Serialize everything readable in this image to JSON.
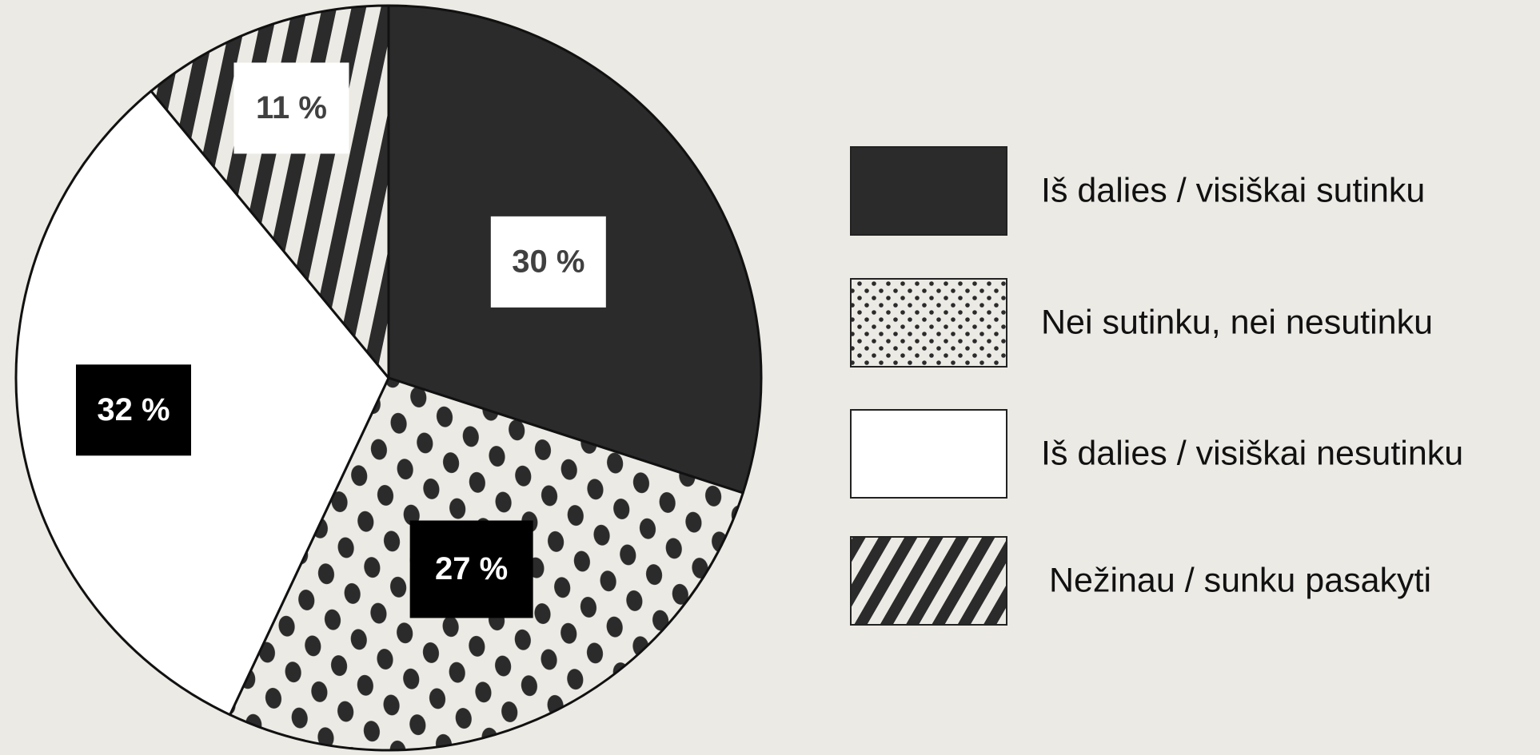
{
  "chart_data": {
    "type": "pie",
    "categories": [
      "Iš dalies / visiškai sutinku",
      "Nei sutinku, nei nesutinku",
      "Iš dalies / visiškai nesutinku",
      "Nežinau / sunku pasakyti"
    ],
    "values": [
      30,
      27,
      32,
      11
    ],
    "value_labels": [
      "30 %",
      "27 %",
      "32 %",
      "11 %"
    ],
    "colors": [
      "#2b2b2b",
      "#eceae4",
      "#ffffff",
      "#2b2b2b"
    ],
    "patterns": [
      "solid",
      "dots",
      "solid",
      "stripes"
    ],
    "label_box_colors": [
      "#ffffff",
      "#000000",
      "#000000",
      "#ffffff"
    ],
    "legend": "right"
  }
}
